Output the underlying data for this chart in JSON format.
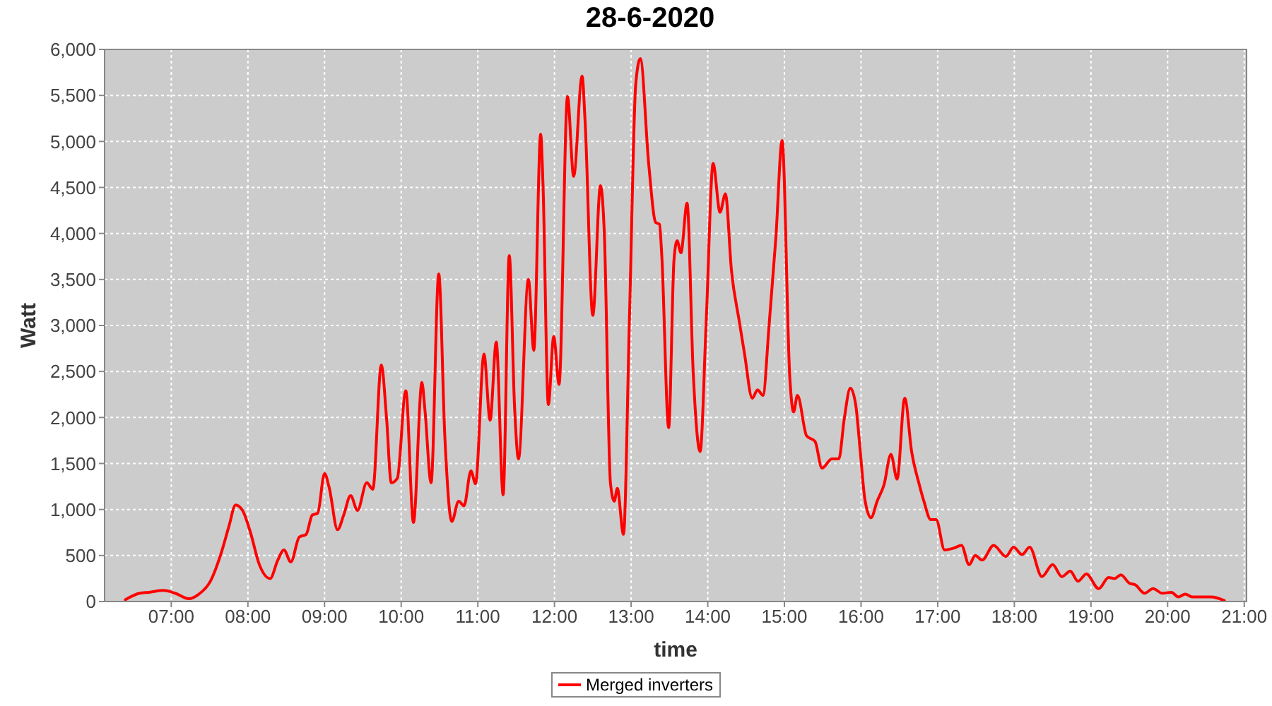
{
  "chart_data": {
    "type": "line",
    "title": "28-6-2020",
    "xlabel": "time",
    "ylabel": "Watt",
    "xlim": [
      6.13,
      21.03
    ],
    "xticks": [
      {
        "value": 7,
        "label": "07:00"
      },
      {
        "value": 8,
        "label": "08:00"
      },
      {
        "value": 9,
        "label": "09:00"
      },
      {
        "value": 10,
        "label": "10:00"
      },
      {
        "value": 11,
        "label": "11:00"
      },
      {
        "value": 12,
        "label": "12:00"
      },
      {
        "value": 13,
        "label": "13:00"
      },
      {
        "value": 14,
        "label": "14:00"
      },
      {
        "value": 15,
        "label": "15:00"
      },
      {
        "value": 16,
        "label": "16:00"
      },
      {
        "value": 17,
        "label": "17:00"
      },
      {
        "value": 18,
        "label": "18:00"
      },
      {
        "value": 19,
        "label": "19:00"
      },
      {
        "value": 20,
        "label": "20:00"
      },
      {
        "value": 21,
        "label": "21:00"
      }
    ],
    "ylim": [
      0,
      6000
    ],
    "yticks": [
      0,
      500,
      {
        "value": 1000,
        "label": "1,000"
      },
      {
        "value": 1500,
        "label": "1,500"
      },
      {
        "value": 2000,
        "label": "2,000"
      },
      {
        "value": 2500,
        "label": "2,500"
      },
      {
        "value": 3000,
        "label": "3,000"
      },
      {
        "value": 3500,
        "label": "3,500"
      },
      {
        "value": 4000,
        "label": "4,000"
      },
      {
        "value": 4500,
        "label": "4,500"
      },
      {
        "value": 5000,
        "label": "5,000"
      },
      {
        "value": 5500,
        "label": "5,500"
      },
      {
        "value": 6000,
        "label": "6,000"
      }
    ],
    "grid": true,
    "legend": "bottom",
    "marker": "none",
    "line_style": "solid",
    "series": [
      {
        "name": "Merged inverters",
        "color": "#ff0000",
        "x": [
          6.4,
          6.59,
          6.71,
          6.9,
          7.05,
          7.23,
          7.36,
          7.51,
          7.66,
          7.75,
          7.84,
          7.93,
          8.03,
          8.15,
          8.29,
          8.39,
          8.47,
          8.56,
          8.67,
          8.76,
          8.84,
          8.91,
          9.0,
          9.06,
          9.17,
          9.25,
          9.34,
          9.43,
          9.55,
          9.63,
          9.74,
          9.81,
          9.87,
          9.95,
          10.06,
          10.16,
          10.27,
          10.31,
          10.39,
          10.49,
          10.57,
          10.66,
          10.75,
          10.82,
          10.91,
          10.97,
          11.08,
          11.16,
          11.24,
          11.33,
          11.41,
          11.48,
          11.53,
          11.66,
          11.73,
          11.82,
          11.85,
          11.92,
          11.99,
          12.06,
          12.17,
          12.25,
          12.36,
          12.4,
          12.5,
          12.6,
          12.65,
          12.73,
          12.78,
          12.82,
          12.9,
          12.98,
          13.06,
          13.12,
          13.23,
          13.32,
          13.37,
          13.4,
          13.49,
          13.56,
          13.6,
          13.65,
          13.73,
          13.81,
          13.9,
          13.98,
          14.07,
          14.16,
          14.23,
          14.31,
          14.41,
          14.48,
          14.58,
          14.65,
          14.72,
          14.8,
          14.89,
          14.97,
          15.07,
          15.12,
          15.17,
          15.29,
          15.4,
          15.49,
          15.62,
          15.71,
          15.78,
          15.86,
          15.93,
          15.99,
          16.05,
          16.13,
          16.21,
          16.3,
          16.39,
          16.47,
          16.57,
          16.66,
          16.76,
          16.82,
          16.91,
          16.98,
          17.09,
          17.21,
          17.31,
          17.41,
          17.49,
          17.58,
          17.73,
          17.89,
          17.99,
          18.1,
          18.2,
          18.36,
          18.5,
          18.62,
          18.73,
          18.83,
          18.94,
          19.1,
          19.23,
          19.31,
          19.39,
          19.5,
          19.58,
          19.7,
          19.81,
          19.93,
          20.05,
          20.14,
          20.23,
          20.32,
          20.57,
          20.74
        ],
        "values": [
          20,
          90,
          100,
          120,
          90,
          30,
          80,
          220,
          550,
          810,
          1050,
          990,
          760,
          400,
          250,
          450,
          560,
          430,
          700,
          730,
          940,
          960,
          1390,
          1240,
          780,
          940,
          1150,
          990,
          1290,
          1220,
          2570,
          1980,
          1290,
          1340,
          2290,
          860,
          2380,
          2080,
          1290,
          3560,
          1780,
          870,
          1090,
          1040,
          1420,
          1280,
          2690,
          1970,
          2820,
          1160,
          3760,
          2100,
          1550,
          3500,
          2730,
          5080,
          4540,
          2140,
          2880,
          2360,
          5490,
          4620,
          5710,
          5210,
          3110,
          4520,
          4010,
          1290,
          1090,
          1230,
          730,
          3140,
          5620,
          5900,
          4750,
          4120,
          4100,
          3760,
          1890,
          3720,
          3920,
          3790,
          4330,
          2490,
          1630,
          3050,
          4760,
          4230,
          4430,
          3590,
          3050,
          2690,
          2210,
          2300,
          2240,
          3000,
          3970,
          5010,
          2440,
          2060,
          2240,
          1800,
          1740,
          1450,
          1550,
          1550,
          1980,
          2320,
          2140,
          1630,
          1110,
          910,
          1090,
          1270,
          1600,
          1330,
          2210,
          1630,
          1270,
          1090,
          890,
          890,
          560,
          580,
          610,
          400,
          500,
          450,
          610,
          490,
          590,
          510,
          590,
          270,
          400,
          270,
          330,
          220,
          300,
          140,
          260,
          250,
          290,
          200,
          180,
          90,
          140,
          90,
          100,
          50,
          80,
          50,
          50,
          10
        ]
      }
    ]
  }
}
